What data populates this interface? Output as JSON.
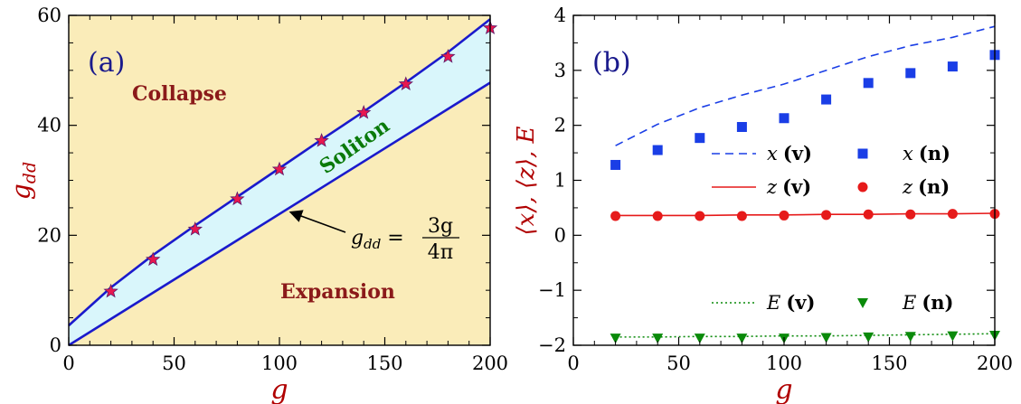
{
  "chart_data": [
    {
      "type": "area",
      "panel_label": "(a)",
      "xlabel": "g",
      "ylabel": "g",
      "ylabel_sub": "dd",
      "xlim": [
        0,
        200
      ],
      "ylim": [
        0,
        60
      ],
      "xticks": [
        0,
        50,
        100,
        150,
        200
      ],
      "yticks": [
        0,
        20,
        40,
        60
      ],
      "regions": {
        "collapse": "Collapse",
        "soliton": "Soliton",
        "expansion": "Expansion"
      },
      "colors": {
        "background": "#faecb9",
        "band": "#d9f6fb",
        "line": "#1a1acc",
        "marker": "#e8174f",
        "frame": "#000000"
      },
      "upper_boundary": {
        "x": [
          0,
          20,
          40,
          60,
          80,
          100,
          120,
          140,
          160,
          180,
          200
        ],
        "y": [
          3.6,
          10.5,
          16.4,
          21.8,
          27.0,
          32.2,
          37.4,
          42.5,
          47.8,
          53.3,
          59.3
        ]
      },
      "lower_boundary": {
        "x": [
          0,
          200
        ],
        "y": [
          0,
          47.75
        ]
      },
      "markers": {
        "x": [
          20,
          40,
          60,
          80,
          100,
          120,
          140,
          160,
          180,
          200
        ],
        "y": [
          9.8,
          15.6,
          21.1,
          26.6,
          32.0,
          37.2,
          42.3,
          47.5,
          52.5,
          57.7
        ]
      },
      "annotation": {
        "lhs_main": "g",
        "lhs_sub": "dd",
        "eq": " = ",
        "numerator": "3g",
        "denominator": "4π",
        "arrow_to": [
          100,
          23.9
        ]
      }
    },
    {
      "type": "line",
      "panel_label": "(b)",
      "xlabel": "g",
      "ylabel": "⟨x⟩, ⟨z⟩, E",
      "xlim": [
        0,
        200
      ],
      "ylim": [
        -2,
        4
      ],
      "xticks": [
        0,
        50,
        100,
        150,
        200
      ],
      "yticks": [
        -2,
        -1,
        0,
        1,
        2,
        3,
        4
      ],
      "ytick_labels": [
        "−2",
        "−1",
        "0",
        "1",
        "2",
        "3",
        "4"
      ],
      "x": [
        20,
        40,
        60,
        80,
        100,
        120,
        140,
        160,
        180,
        200
      ],
      "series": [
        {
          "name": "x",
          "tag": "(v)",
          "style": "dashed",
          "color": "#1a3ee6",
          "values": [
            1.63,
            2.02,
            2.32,
            2.55,
            2.75,
            3.0,
            3.25,
            3.45,
            3.6,
            3.8
          ]
        },
        {
          "name": "x",
          "tag": "(n)",
          "style": "square",
          "color": "#1a3ee6",
          "values": [
            1.28,
            1.55,
            1.77,
            1.97,
            2.13,
            2.47,
            2.77,
            2.95,
            3.07,
            3.28
          ]
        },
        {
          "name": "z",
          "tag": "(v)",
          "style": "solid",
          "color": "#e61a1a",
          "values": [
            0.36,
            0.36,
            0.36,
            0.37,
            0.37,
            0.38,
            0.38,
            0.39,
            0.39,
            0.4
          ]
        },
        {
          "name": "z",
          "tag": "(n)",
          "style": "circle",
          "color": "#e61a1a",
          "values": [
            0.35,
            0.35,
            0.35,
            0.35,
            0.36,
            0.37,
            0.38,
            0.38,
            0.39,
            0.39
          ]
        },
        {
          "name": "E",
          "tag": "(v)",
          "style": "dotted",
          "color": "#0a8a0a",
          "values": [
            -1.85,
            -1.85,
            -1.84,
            -1.84,
            -1.83,
            -1.83,
            -1.82,
            -1.81,
            -1.8,
            -1.79
          ]
        },
        {
          "name": "E",
          "tag": "(n)",
          "style": "triangle",
          "color": "#0a8a0a",
          "values": [
            -1.87,
            -1.87,
            -1.87,
            -1.87,
            -1.87,
            -1.86,
            -1.85,
            -1.84,
            -1.83,
            -1.82
          ]
        }
      ]
    }
  ]
}
